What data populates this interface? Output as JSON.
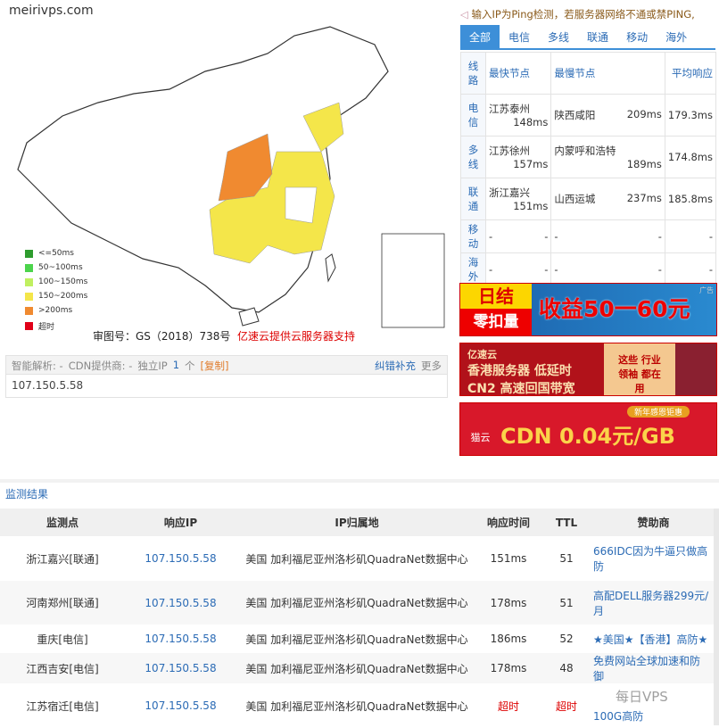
{
  "site": "meirivps.com",
  "legend": [
    {
      "label": "<=50ms",
      "color": "#2e9c2e"
    },
    {
      "label": "50~100ms",
      "color": "#4cd44c"
    },
    {
      "label": "100~150ms",
      "color": "#c0f060"
    },
    {
      "label": "150~200ms",
      "color": "#f4e64a"
    },
    {
      "label": ">200ms",
      "color": "#f08a30"
    },
    {
      "label": "超时",
      "color": "#e00018"
    }
  ],
  "map_caption": "审图号：GS（2018）738号",
  "map_sponsor": "亿速云提供云服务器支持",
  "info": {
    "smart_label": "智能解析: -",
    "cdn_label": "CDN提供商: -",
    "unique_ip_label": "独立IP",
    "unique_ip_count": "1",
    "unit": "个",
    "copy": "[复制]",
    "correct": "纠错补充",
    "more": "更多",
    "ip": "107.150.5.58"
  },
  "notice": "输入IP为Ping检测，若服务器网络不通或禁PING,",
  "tabs": [
    "全部",
    "电信",
    "多线",
    "联通",
    "移动",
    "海外"
  ],
  "summary": {
    "headers": [
      "线路",
      "最快节点",
      "最慢节点",
      "平均响应"
    ],
    "rows": [
      {
        "line": "电信",
        "fast": "江苏泰州",
        "fast_ms": "148ms",
        "slow": "陕西咸阳",
        "slow_ms": "209ms",
        "avg": "179.3ms"
      },
      {
        "line": "多线",
        "fast": "江苏徐州",
        "fast_ms": "157ms",
        "slow": "内蒙呼和浩特",
        "slow_ms": "189ms",
        "avg": "174.8ms"
      },
      {
        "line": "联通",
        "fast": "浙江嘉兴",
        "fast_ms": "151ms",
        "slow": "山西运城",
        "slow_ms": "237ms",
        "avg": "185.8ms"
      },
      {
        "line": "移动",
        "fast": "-",
        "fast_ms": "-",
        "slow": "-",
        "slow_ms": "-",
        "avg": "-"
      },
      {
        "line": "海外",
        "fast": "-",
        "fast_ms": "-",
        "slow": "-",
        "slow_ms": "-",
        "avg": "-"
      }
    ]
  },
  "ads": [
    {
      "a": "日结",
      "b": "零扣量",
      "c": "收益50一60元",
      "tag": "广告"
    },
    {
      "brand": "亿速云",
      "l1": "香港服务器  低延时",
      "l2": "CN2 高速回国带宽",
      "r": "这些 行业领袖 都在用"
    },
    {
      "brand": "猫云",
      "badge": "新年感恩钜惠",
      "main": "CDN 0.04元/GB"
    }
  ],
  "results": {
    "title": "监测结果",
    "headers": [
      "监测点",
      "响应IP",
      "IP归属地",
      "响应时间",
      "TTL",
      "赞助商"
    ],
    "rows": [
      {
        "node": "浙江嘉兴[联通]",
        "ip": "107.150.5.58",
        "loc": "美国 加利福尼亚州洛杉矶QuadraNet数据中心",
        "time": "151ms",
        "ttl": "51",
        "sponsor": "666IDC因为牛逼只做高防"
      },
      {
        "node": "河南郑州[联通]",
        "ip": "107.150.5.58",
        "loc": "美国 加利福尼亚州洛杉矶QuadraNet数据中心",
        "time": "178ms",
        "ttl": "51",
        "sponsor": "高配DELL服务器299元/月"
      },
      {
        "node": "重庆[电信]",
        "ip": "107.150.5.58",
        "loc": "美国 加利福尼亚州洛杉矶QuadraNet数据中心",
        "time": "186ms",
        "ttl": "52",
        "sponsor": "★美国★【香港】高防★"
      },
      {
        "node": "江西吉安[电信]",
        "ip": "107.150.5.58",
        "loc": "美国 加利福尼亚州洛杉矶QuadraNet数据中心",
        "time": "178ms",
        "ttl": "48",
        "sponsor": "免费网站全球加速和防御"
      },
      {
        "node": "江苏宿迁[电信]",
        "ip": "107.150.5.58",
        "loc": "美国 加利福尼亚州洛杉矶QuadraNet数据中心",
        "time": "超时",
        "ttl": "超时",
        "sponsor": "100G高防"
      }
    ]
  },
  "watermark": "每日VPS"
}
